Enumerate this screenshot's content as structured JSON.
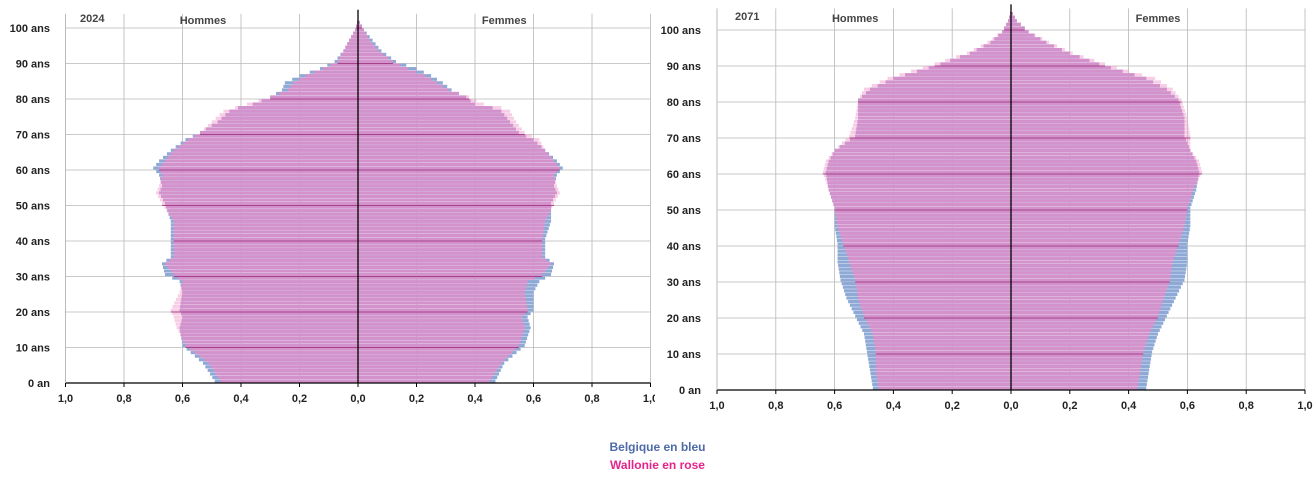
{
  "colors": {
    "belgique": "#8ea9d6",
    "wallonie": "#d98bc9",
    "wallonie_light": "#f0a6cf",
    "legend_blue": "#4e6aa8",
    "legend_pink": "#e6238a",
    "grid": "#b8b8b8",
    "axis": "#000000",
    "decade_line": "#9a2a7a"
  },
  "legend": {
    "belgique": "Belgique en bleu",
    "wallonie": "Wallonie en rose"
  },
  "chart_data": [
    {
      "type": "bar",
      "subtype": "population-pyramid",
      "title": "2024",
      "left_label": "Hommes",
      "right_label": "Femmes",
      "x_ticks": [
        "1,0",
        "0,8",
        "0,6",
        "0,4",
        "0,2",
        "0,0",
        "0,2",
        "0,4",
        "0,6",
        "0,8",
        "1,0"
      ],
      "xlim": [
        -1.0,
        1.0
      ],
      "y_ticks": [
        "0 an",
        "10 ans",
        "20 ans",
        "30 ans",
        "40 ans",
        "50 ans",
        "60 ans",
        "70 ans",
        "80 ans",
        "90 ans",
        "100 ans"
      ],
      "ylim": [
        0,
        104
      ],
      "grid": true,
      "series": [
        {
          "name": "Belgique",
          "men": {
            "ages": [
              0,
              5,
              10,
              15,
              18,
              20,
              25,
              28,
              30,
              33,
              35,
              40,
              45,
              50,
              53,
              55,
              58,
              60,
              62,
              65,
              68,
              70,
              73,
              76,
              77,
              78,
              80,
              82,
              84,
              86,
              88,
              90,
              93,
              96,
              99,
              102
            ],
            "values": [
              0.49,
              0.53,
              0.6,
              0.61,
              0.6,
              0.61,
              0.6,
              0.61,
              0.66,
              0.67,
              0.64,
              0.64,
              0.64,
              0.66,
              0.68,
              0.67,
              0.68,
              0.7,
              0.68,
              0.64,
              0.59,
              0.54,
              0.48,
              0.44,
              0.41,
              0.36,
              0.3,
              0.26,
              0.25,
              0.2,
              0.13,
              0.08,
              0.05,
              0.03,
              0.01,
              0.0
            ]
          },
          "women": {
            "ages": [
              0,
              5,
              10,
              15,
              18,
              20,
              25,
              28,
              30,
              33,
              35,
              40,
              45,
              50,
              53,
              55,
              58,
              60,
              62,
              65,
              68,
              70,
              73,
              76,
              77,
              78,
              80,
              82,
              84,
              86,
              88,
              90,
              93,
              96,
              99,
              102
            ],
            "values": [
              0.47,
              0.5,
              0.57,
              0.59,
              0.58,
              0.6,
              0.6,
              0.62,
              0.66,
              0.67,
              0.64,
              0.64,
              0.66,
              0.66,
              0.68,
              0.67,
              0.68,
              0.7,
              0.68,
              0.64,
              0.6,
              0.55,
              0.52,
              0.49,
              0.46,
              0.4,
              0.37,
              0.32,
              0.29,
              0.25,
              0.2,
              0.13,
              0.08,
              0.05,
              0.02,
              0.0
            ]
          }
        },
        {
          "name": "Wallonie",
          "men": {
            "ages": [
              0,
              5,
              10,
              15,
              18,
              20,
              25,
              28,
              30,
              33,
              35,
              40,
              45,
              50,
              53,
              55,
              58,
              60,
              62,
              65,
              68,
              70,
              73,
              76,
              77,
              78,
              80,
              82,
              84,
              86,
              88,
              90,
              93,
              96,
              99,
              102
            ],
            "values": [
              0.47,
              0.51,
              0.59,
              0.62,
              0.63,
              0.64,
              0.61,
              0.6,
              0.63,
              0.66,
              0.63,
              0.63,
              0.63,
              0.67,
              0.69,
              0.68,
              0.67,
              0.68,
              0.66,
              0.63,
              0.58,
              0.54,
              0.5,
              0.46,
              0.42,
              0.38,
              0.3,
              0.24,
              0.22,
              0.18,
              0.12,
              0.07,
              0.05,
              0.03,
              0.01,
              0.0
            ]
          },
          "women": {
            "ages": [
              0,
              5,
              10,
              15,
              18,
              20,
              25,
              28,
              30,
              33,
              35,
              40,
              45,
              50,
              53,
              55,
              58,
              60,
              62,
              65,
              68,
              70,
              73,
              76,
              77,
              78,
              80,
              82,
              84,
              86,
              88,
              90,
              93,
              96,
              99,
              102
            ],
            "values": [
              0.45,
              0.49,
              0.55,
              0.57,
              0.56,
              0.58,
              0.57,
              0.58,
              0.63,
              0.66,
              0.63,
              0.63,
              0.64,
              0.67,
              0.69,
              0.68,
              0.67,
              0.69,
              0.67,
              0.64,
              0.62,
              0.57,
              0.54,
              0.52,
              0.49,
              0.43,
              0.38,
              0.31,
              0.27,
              0.23,
              0.17,
              0.12,
              0.07,
              0.04,
              0.02,
              0.0
            ]
          }
        }
      ]
    },
    {
      "type": "bar",
      "subtype": "population-pyramid",
      "title": "2071",
      "left_label": "Hommes",
      "right_label": "Femmes",
      "x_ticks": [
        "1,0",
        "0,8",
        "0,6",
        "0,4",
        "0,2",
        "0,0",
        "0,2",
        "0,4",
        "0,6",
        "0,8",
        "1,0"
      ],
      "xlim": [
        -1.0,
        1.0
      ],
      "y_ticks": [
        "0 an",
        "10 ans",
        "20 ans",
        "30 ans",
        "40 ans",
        "50 ans",
        "60 ans",
        "70 ans",
        "80 ans",
        "90 ans",
        "100 ans"
      ],
      "ylim": [
        0,
        106
      ],
      "grid": true,
      "series": [
        {
          "name": "Belgique",
          "men": {
            "ages": [
              0,
              5,
              10,
              15,
              20,
              25,
              30,
              35,
              40,
              45,
              50,
              55,
              60,
              63,
              66,
              70,
              75,
              80,
              83,
              86,
              88,
              90,
              93,
              96,
              99,
              102,
              105
            ],
            "values": [
              0.47,
              0.48,
              0.49,
              0.5,
              0.53,
              0.56,
              0.58,
              0.59,
              0.59,
              0.6,
              0.6,
              0.62,
              0.63,
              0.62,
              0.6,
              0.53,
              0.52,
              0.52,
              0.48,
              0.4,
              0.32,
              0.24,
              0.14,
              0.07,
              0.03,
              0.01,
              0.0
            ]
          },
          "women": {
            "ages": [
              0,
              5,
              10,
              15,
              20,
              25,
              30,
              35,
              40,
              45,
              50,
              55,
              60,
              63,
              66,
              70,
              75,
              80,
              83,
              86,
              88,
              90,
              93,
              96,
              99,
              102,
              105
            ],
            "values": [
              0.46,
              0.47,
              0.48,
              0.5,
              0.53,
              0.56,
              0.59,
              0.6,
              0.6,
              0.61,
              0.61,
              0.63,
              0.64,
              0.63,
              0.61,
              0.59,
              0.59,
              0.57,
              0.53,
              0.46,
              0.38,
              0.3,
              0.2,
              0.12,
              0.06,
              0.02,
              0.0
            ]
          }
        },
        {
          "name": "Wallonie",
          "men": {
            "ages": [
              0,
              5,
              10,
              15,
              20,
              25,
              30,
              35,
              40,
              45,
              50,
              55,
              60,
              63,
              66,
              70,
              75,
              80,
              83,
              86,
              88,
              90,
              93,
              96,
              99,
              102,
              105
            ],
            "values": [
              0.45,
              0.46,
              0.46,
              0.47,
              0.5,
              0.52,
              0.53,
              0.55,
              0.57,
              0.59,
              0.6,
              0.62,
              0.64,
              0.63,
              0.6,
              0.55,
              0.53,
              0.52,
              0.5,
              0.42,
              0.34,
              0.26,
              0.15,
              0.08,
              0.03,
              0.01,
              0.0
            ]
          },
          "women": {
            "ages": [
              0,
              5,
              10,
              15,
              20,
              25,
              30,
              35,
              40,
              45,
              50,
              55,
              60,
              63,
              66,
              70,
              75,
              80,
              83,
              86,
              88,
              90,
              93,
              96,
              99,
              102,
              105
            ],
            "values": [
              0.43,
              0.44,
              0.45,
              0.47,
              0.5,
              0.52,
              0.54,
              0.55,
              0.57,
              0.59,
              0.6,
              0.62,
              0.65,
              0.64,
              0.61,
              0.61,
              0.6,
              0.58,
              0.55,
              0.49,
              0.4,
              0.32,
              0.21,
              0.13,
              0.06,
              0.02,
              0.0
            ]
          }
        }
      ]
    }
  ]
}
